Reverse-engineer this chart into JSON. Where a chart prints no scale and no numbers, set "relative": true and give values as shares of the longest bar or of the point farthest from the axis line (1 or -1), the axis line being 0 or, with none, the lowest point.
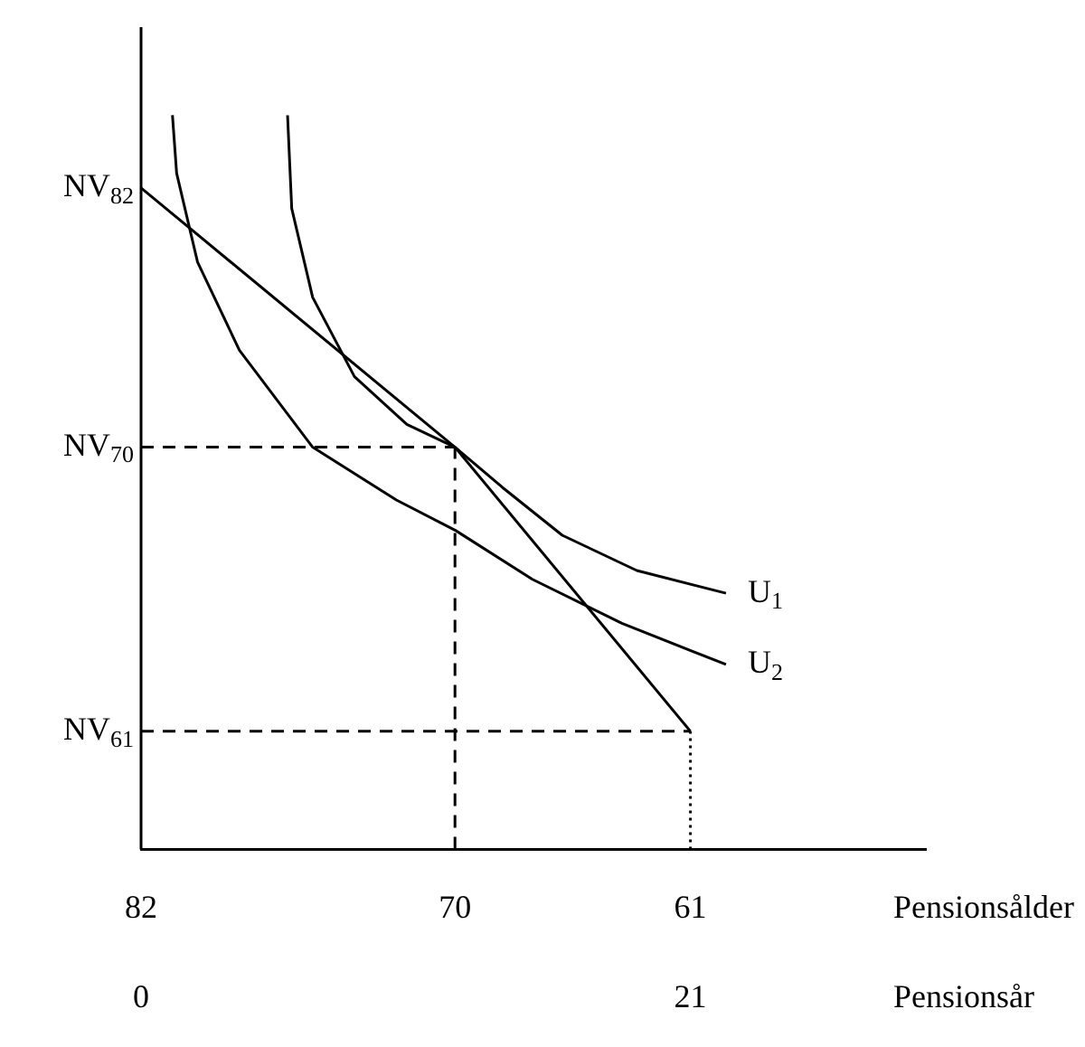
{
  "chart_data": {
    "type": "line",
    "relative": true,
    "marker": "none",
    "line_style": "solid",
    "xlabel": "Pensionsålder",
    "x2label": "Pensionsår",
    "xlim": [
      82,
      52
    ],
    "xticks": [
      82,
      70,
      61
    ],
    "x2lim": [
      0,
      30
    ],
    "x2ticks": [
      0,
      21
    ],
    "series": [
      {
        "name": "NV$_{82}$",
        "color": "#000000",
        "x": [
          82,
          70,
          61
        ],
        "values": [
          0.901,
          0.548,
          0.161
        ]
      },
      {
        "name": "U$_{1}$",
        "color": "#000000",
        "x": [
          76.4,
          76.24,
          75.44,
          73.84,
          71.84,
          70,
          68.18,
          65.9,
          63.05,
          59.64
        ],
        "values": [
          1.0,
          0.873,
          0.752,
          0.644,
          0.579,
          0.548,
          0.493,
          0.428,
          0.38,
          0.349
        ]
      },
      {
        "name": "U$_{2}$",
        "color": "#000000",
        "x": [
          80.8,
          80.64,
          79.84,
          78.24,
          75.44,
          72.24,
          70,
          67.04,
          63.62,
          59.64
        ],
        "values": [
          1.0,
          0.921,
          0.8,
          0.68,
          0.548,
          0.476,
          0.435,
          0.368,
          0.308,
          0.252
        ]
      },
      {
        "name": "NV$_{70}$",
        "color": "#000000",
        "line_style": "dashed",
        "x": [
          82,
          70
        ],
        "values": [
          0.548,
          0.548
        ]
      },
      {
        "color": "#000000",
        "line_style": "dashed",
        "x": [
          70,
          70
        ],
        "values": [
          0,
          0.548
        ]
      },
      {
        "name": "NV$_{61}$",
        "color": "#000000",
        "line_style": "dashed",
        "x": [
          82,
          61
        ],
        "values": [
          0.161,
          0.161
        ]
      },
      {
        "color": "#000000",
        "line_style": "dotted",
        "x": [
          61,
          61
        ],
        "values": [
          0,
          0.161
        ]
      }
    ]
  }
}
